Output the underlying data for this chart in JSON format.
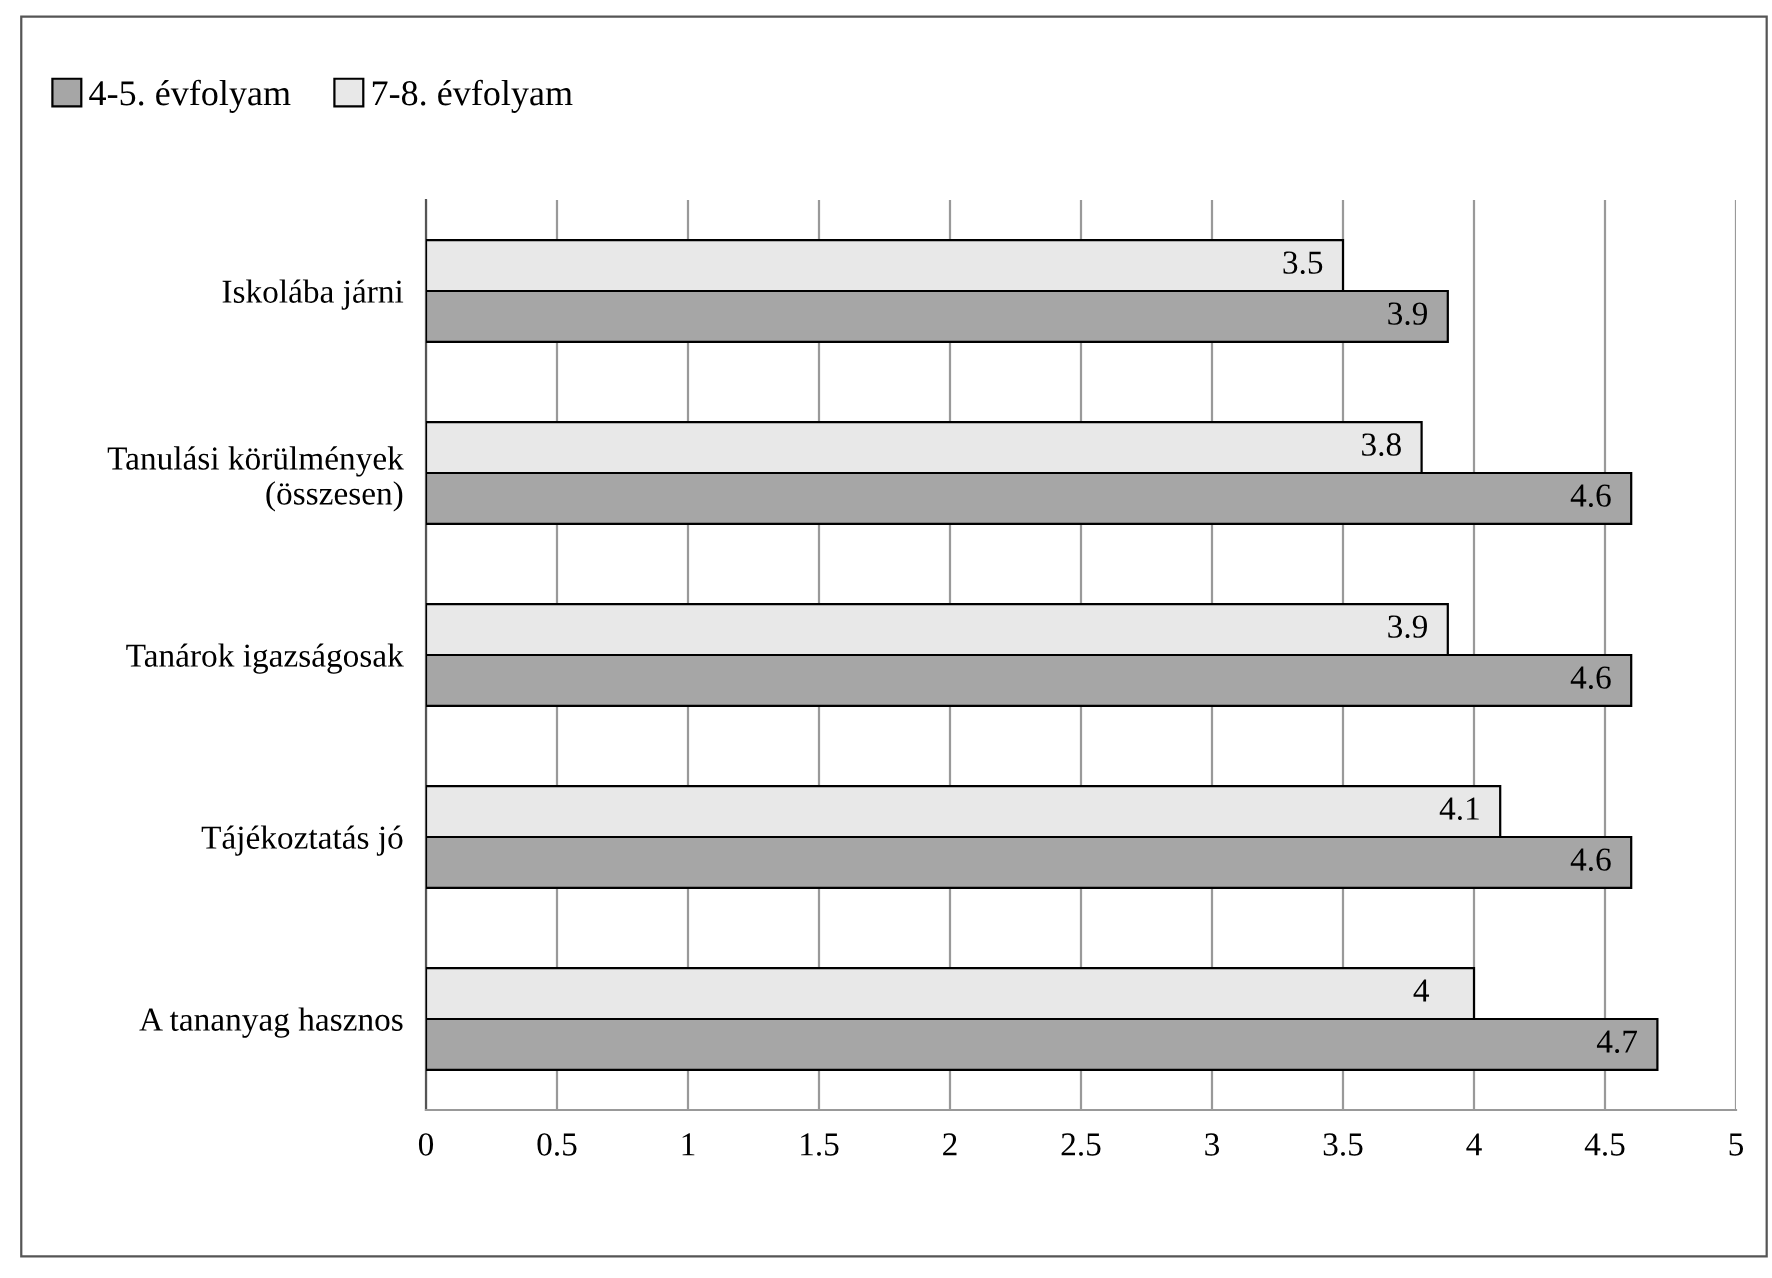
{
  "chart_data": {
    "type": "bar",
    "orientation": "horizontal",
    "categories": [
      "Iskolába járni",
      "Tanulási körülmények\n(összesen)",
      "Tanárok igazságosak",
      "Tájékoztatás jó",
      "A tananyag hasznos"
    ],
    "series": [
      {
        "name": "4-5. évfolyam",
        "color": "#a6a6a6",
        "values": [
          3.9,
          4.6,
          4.6,
          4.6,
          4.7
        ]
      },
      {
        "name": "7-8. évfolyam",
        "color": "#e8e8e8",
        "values": [
          3.5,
          3.8,
          3.9,
          4.1,
          4
        ]
      }
    ],
    "xlim": [
      0,
      5
    ],
    "xticks": [
      0,
      0.5,
      1,
      1.5,
      2,
      2.5,
      3,
      3.5,
      4,
      4.5,
      5
    ],
    "grid": "x",
    "legend": "top left",
    "data_labels": true
  }
}
